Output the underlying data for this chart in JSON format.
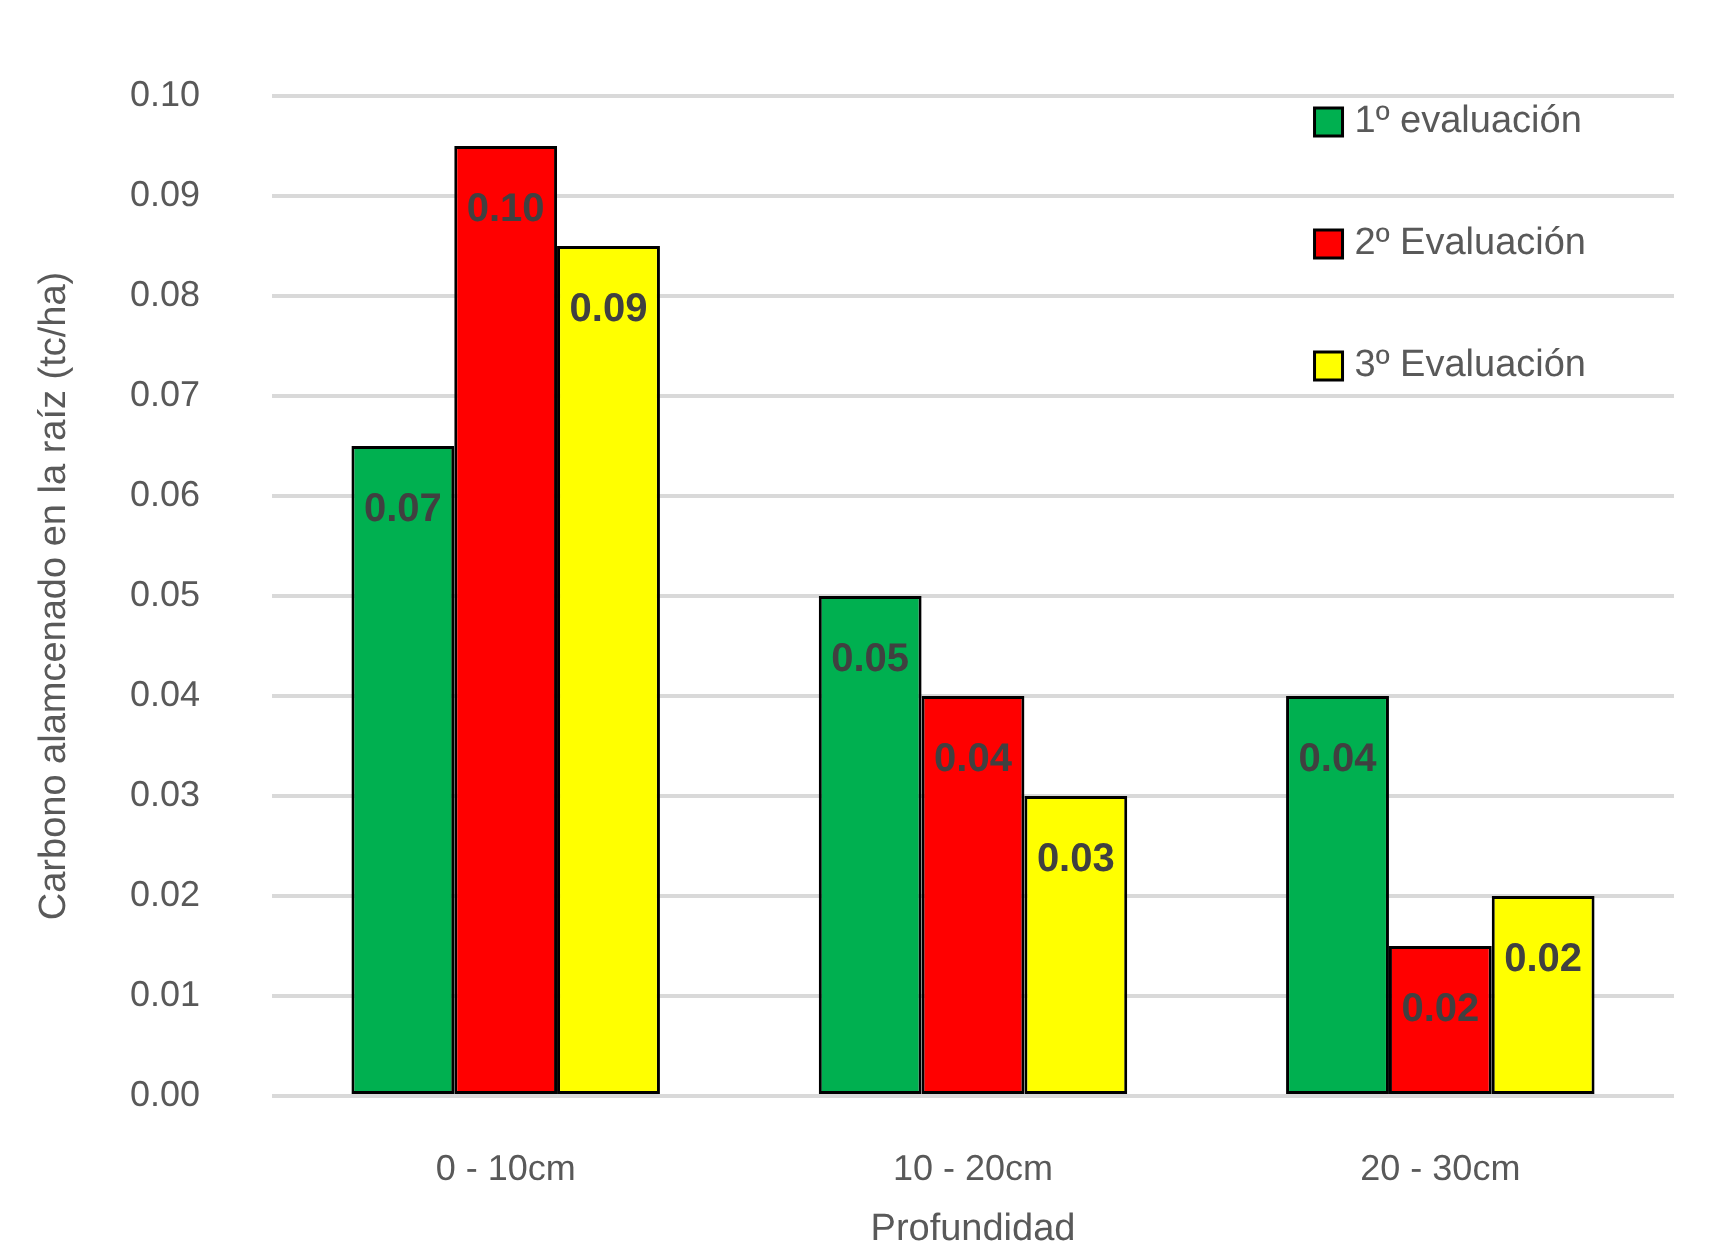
{
  "chart_data": {
    "type": "bar",
    "xlabel": "Profundidad",
    "ylabel": "Carbono alamcenado en la raíz (tc/ha)",
    "categories": [
      "0 - 10cm",
      "10 - 20cm",
      "20 - 30cm"
    ],
    "series": [
      {
        "name": "1º evaluación",
        "color": "#00b050",
        "values": [
          0.065,
          0.05,
          0.04
        ],
        "value_labels": [
          "0.07",
          "0.05",
          "0.04"
        ]
      },
      {
        "name": "2º Evaluación",
        "color": "#ff0000",
        "values": [
          0.095,
          0.04,
          0.015
        ],
        "value_labels": [
          "0.10",
          "0.04",
          "0.02"
        ]
      },
      {
        "name": "3º Evaluación",
        "color": "#ffff00",
        "values": [
          0.085,
          0.03,
          0.02
        ],
        "value_labels": [
          "0.09",
          "0.03",
          "0.02"
        ]
      }
    ],
    "ylim": [
      0,
      0.1
    ],
    "yticks": [
      {
        "value": 0,
        "label": "0.00"
      },
      0.01,
      0.02,
      0.03,
      0.04,
      0.05,
      0.06,
      0.07,
      0.08,
      0.09,
      {
        "value": 0.1,
        "label": "0.10"
      }
    ],
    "grid": "y",
    "legend": "top right"
  }
}
